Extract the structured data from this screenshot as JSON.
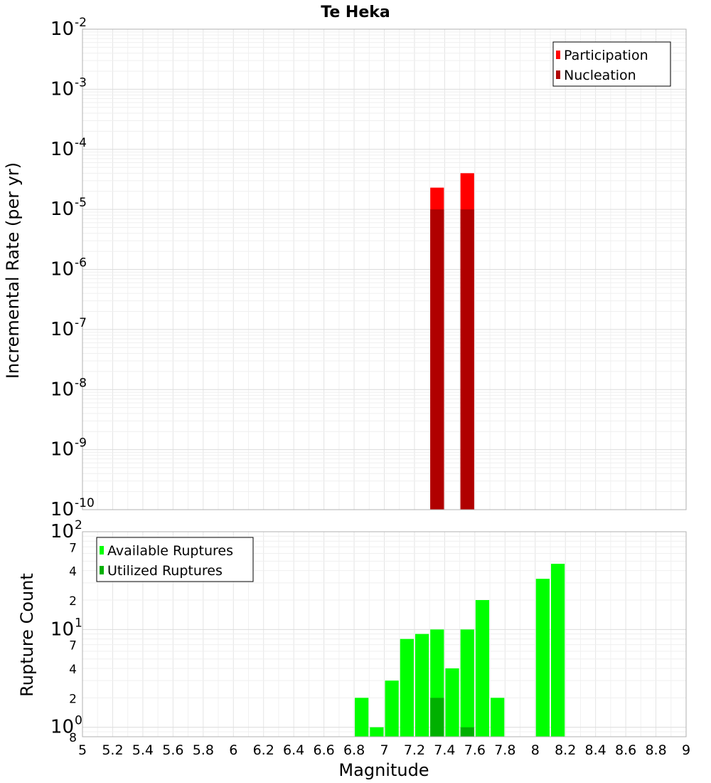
{
  "chart_data": [
    {
      "type": "bar",
      "title": "Te Heka",
      "ylabel": "Incremental Rate (per yr)",
      "xlabel": "",
      "y_scale": "log",
      "ylim": [
        1e-10,
        0.01
      ],
      "xlim": [
        5,
        9
      ],
      "grid": true,
      "legend_position": "top-right",
      "bar_width": 0.1,
      "y_tick_labels": [
        {
          "base": "10",
          "exp": "-2"
        },
        {
          "base": "10",
          "exp": "-3"
        },
        {
          "base": "10",
          "exp": "-4"
        },
        {
          "base": "10",
          "exp": "-5"
        },
        {
          "base": "10",
          "exp": "-6"
        },
        {
          "base": "10",
          "exp": "-7"
        },
        {
          "base": "10",
          "exp": "-8"
        },
        {
          "base": "10",
          "exp": "-9"
        },
        {
          "base": "10",
          "exp": "-10"
        }
      ],
      "series": [
        {
          "name": "Participation",
          "color": "#ff0000",
          "x": [
            7.35,
            7.55
          ],
          "values": [
            2.3e-05,
            4e-05
          ]
        },
        {
          "name": "Nucleation",
          "color": "#b00000",
          "x": [
            7.35,
            7.55
          ],
          "values": [
            1e-05,
            1e-05
          ]
        }
      ]
    },
    {
      "type": "bar",
      "title": "",
      "ylabel": "Rupture Count",
      "xlabel": "Magnitude",
      "y_scale": "log",
      "ylim": [
        0.8,
        100
      ],
      "xlim": [
        5,
        9
      ],
      "grid": true,
      "legend_position": "top-left",
      "bar_width": 0.1,
      "y_tick_labels": [
        {
          "base": "10",
          "exp": "2"
        },
        {
          "base": "7",
          "exp": ""
        },
        {
          "base": "4",
          "exp": ""
        },
        {
          "base": "2",
          "exp": ""
        },
        {
          "base": "10",
          "exp": "1"
        },
        {
          "base": "7",
          "exp": ""
        },
        {
          "base": "4",
          "exp": ""
        },
        {
          "base": "2",
          "exp": ""
        },
        {
          "base": "10",
          "exp": "0"
        },
        {
          "base": "8",
          "exp": ""
        }
      ],
      "x_tick_labels": [
        "5",
        "5.2",
        "5.4",
        "5.6",
        "5.8",
        "6",
        "6.2",
        "6.4",
        "6.6",
        "6.8",
        "7",
        "7.2",
        "7.4",
        "7.6",
        "7.8",
        "8",
        "8.2",
        "8.4",
        "8.6",
        "8.8",
        "9"
      ],
      "series": [
        {
          "name": "Available Ruptures",
          "color": "#00ff00",
          "x": [
            6.85,
            6.95,
            7.05,
            7.15,
            7.25,
            7.35,
            7.45,
            7.55,
            7.65,
            7.75,
            8.05,
            8.15
          ],
          "values": [
            2,
            1,
            3,
            8,
            9,
            10,
            4,
            10,
            20,
            2,
            33,
            47
          ]
        },
        {
          "name": "Utilized Ruptures",
          "color": "#00b000",
          "x": [
            7.35,
            7.55
          ],
          "values": [
            2,
            1
          ]
        }
      ]
    }
  ]
}
